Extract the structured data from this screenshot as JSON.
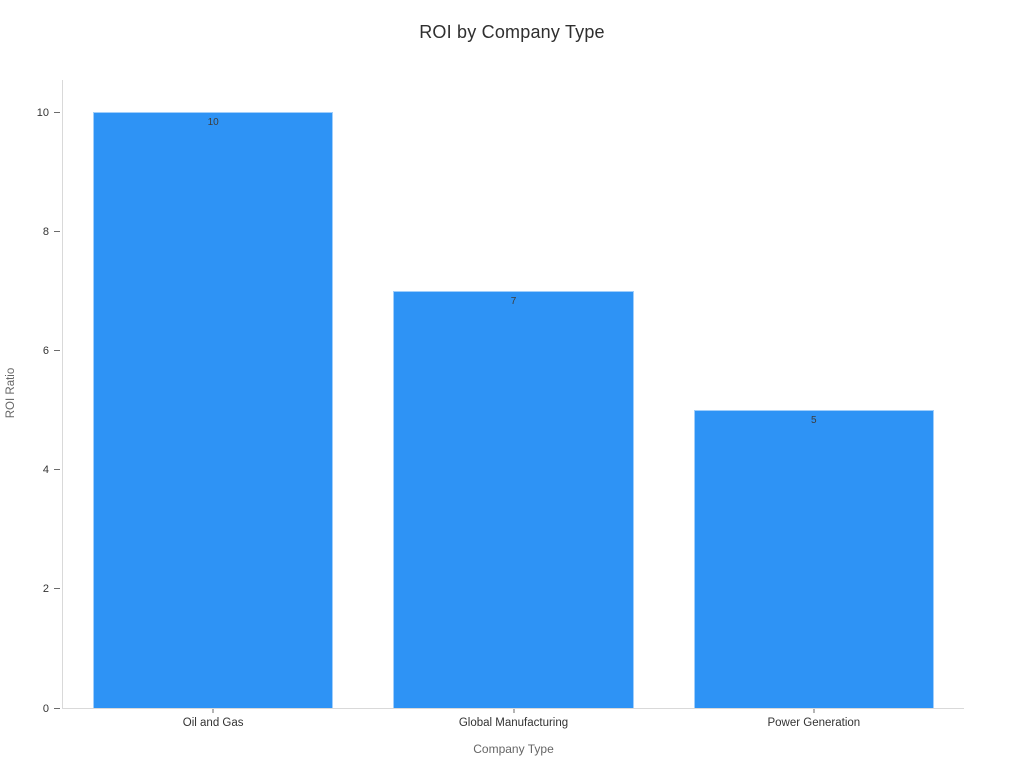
{
  "chart_data": {
    "type": "bar",
    "title": "ROI by Company Type",
    "xlabel": "Company Type",
    "ylabel": "ROI Ratio",
    "categories": [
      "Oil and Gas",
      "Global Manufacturing",
      "Power Generation"
    ],
    "values": [
      10,
      7,
      5
    ],
    "value_labels": [
      "10",
      "7",
      "5"
    ],
    "yticks": [
      0,
      2,
      4,
      6,
      8,
      10
    ],
    "ylim": [
      0,
      10.54
    ],
    "bar_color": "#2e93f5",
    "bar_width_fraction": 0.8,
    "grid": false,
    "legend": false,
    "axis_line_color": "#d9d9d9",
    "tick_color": "#6b6b6b",
    "title_color": "#2f2f2f",
    "axis_title_color": "#666666",
    "tick_label_color": "#333333",
    "value_label_color": "#3d3d3d"
  }
}
